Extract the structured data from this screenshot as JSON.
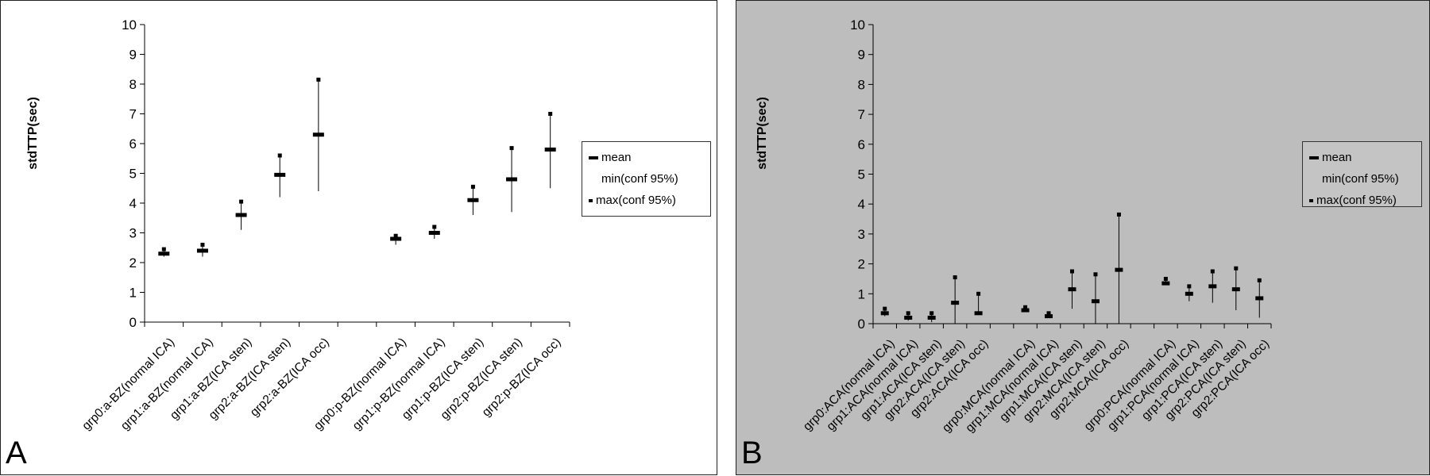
{
  "panels": [
    {
      "letter": "A",
      "legend": {
        "mean": "mean",
        "min": "min(conf 95%)",
        "max": "max(conf 95%)"
      },
      "chart_data": {
        "type": "errorbar",
        "ylabel": "stdTTP(sec)",
        "xlabel": "",
        "ylim": [
          0,
          10
        ],
        "yticks": [
          0,
          1,
          2,
          3,
          4,
          5,
          6,
          7,
          8,
          9,
          10
        ],
        "grid": false,
        "legend_position": "right",
        "categories": [
          "grp0:a-BZ(normal ICA)",
          "grp1:a-BZ(normal ICA)",
          "grp1:a-BZ(ICA sten)",
          "grp2:a-BZ(ICA sten)",
          "grp2:a-BZ(ICA occ)",
          "grp0:p-BZ(normal ICA)",
          "grp1:p-BZ(normal ICA)",
          "grp1:p-BZ(ICA sten)",
          "grp2:p-BZ(ICA sten)",
          "grp2:p-BZ(ICA occ)"
        ],
        "slots": [
          0,
          1,
          2,
          3,
          4,
          6,
          7,
          8,
          9,
          10
        ],
        "num_slots": 11,
        "series": [
          {
            "name": "mean",
            "values": [
              2.3,
              2.4,
              3.6,
              4.95,
              6.3,
              2.8,
              3.0,
              4.1,
              4.8,
              5.8
            ]
          },
          {
            "name": "min(conf 95%)",
            "values": [
              2.2,
              2.2,
              3.1,
              4.2,
              4.4,
              2.6,
              2.8,
              3.6,
              3.7,
              4.5
            ]
          },
          {
            "name": "max(conf 95%)",
            "values": [
              2.45,
              2.6,
              4.05,
              5.6,
              8.15,
              2.9,
              3.2,
              4.55,
              5.85,
              7.0
            ]
          }
        ]
      }
    },
    {
      "letter": "B",
      "legend": {
        "mean": "mean",
        "min": "min(conf 95%)",
        "max": "max(conf 95%)"
      },
      "chart_data": {
        "type": "errorbar",
        "ylabel": "stdTTP(sec)",
        "xlabel": "",
        "ylim": [
          0,
          10
        ],
        "yticks": [
          0,
          1,
          2,
          3,
          4,
          5,
          6,
          7,
          8,
          9,
          10
        ],
        "grid": false,
        "legend_position": "right",
        "categories": [
          "grp0:ACA(normal ICA)",
          "grp1:ACA(normal ICA)",
          "grp1:ACA(ICA sten)",
          "grp2:ACA(ICA sten)",
          "grp2:ACA(ICA occ)",
          "grp0:MCA(normal ICA)",
          "grp1:MCA(normal ICA)",
          "grp1:MCA(ICA sten)",
          "grp2:MCA(ICA sten)",
          "grp2:MCA(ICA occ)",
          "grp0:PCA(normal ICA)",
          "grp1:PCA(normal ICA)",
          "grp1:PCA(ICA sten)",
          "grp2:PCA(ICA sten)",
          "grp2:PCA(ICA occ)"
        ],
        "slots": [
          0,
          1,
          2,
          3,
          4,
          6,
          7,
          8,
          9,
          10,
          12,
          13,
          14,
          15,
          16
        ],
        "num_slots": 17,
        "series": [
          {
            "name": "mean",
            "values": [
              0.35,
              0.2,
              0.2,
              0.7,
              0.35,
              0.45,
              0.25,
              1.15,
              0.75,
              1.8,
              1.35,
              1.0,
              1.25,
              1.15,
              0.85
            ]
          },
          {
            "name": "min(conf 95%)",
            "values": [
              0.25,
              0.1,
              0.05,
              0.0,
              0.3,
              0.4,
              0.2,
              0.5,
              0.0,
              0.0,
              1.3,
              0.75,
              0.7,
              0.45,
              0.2
            ]
          },
          {
            "name": "max(conf 95%)",
            "values": [
              0.5,
              0.35,
              0.35,
              1.55,
              1.0,
              0.55,
              0.35,
              1.75,
              1.65,
              3.65,
              1.5,
              1.25,
              1.75,
              1.85,
              1.45
            ]
          }
        ]
      }
    }
  ]
}
